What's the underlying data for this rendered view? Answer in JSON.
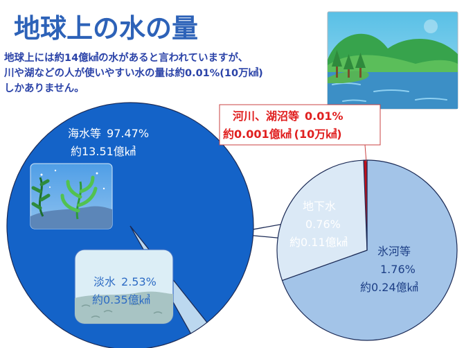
{
  "page": {
    "title": "地球上の水の量",
    "description": [
      "地球上には約14億㎦の水があると言われていますが、",
      "川や湖などの人が使いやすい水の量は約0.01%(10万㎦)",
      "しかありません。"
    ]
  },
  "colors": {
    "title": "#2d62b8",
    "sea": "#1463c8",
    "fresh_total": "#bcd8ef",
    "glacier": "#a3c4e8",
    "groundwater": "#dbe9f6",
    "rivers_lakes": "#c0101a",
    "label_red": "#e02020"
  },
  "illustrations": {
    "top_right": "lake-landscape-icon",
    "sea_inset": "seaweed-icon",
    "fresh_inset": "water-surface-icon"
  },
  "chart_data": [
    {
      "type": "pie",
      "labels": [
        "海水等",
        "淡水"
      ],
      "values": [
        97.47,
        2.53
      ],
      "units": "%",
      "segments": [
        {
          "label": "海水等",
          "pct_text": "97.47%",
          "volume_text": "約13.51億㎦"
        },
        {
          "label": "淡水",
          "pct_text": "2.53%",
          "volume_text": "約0.35億㎦"
        }
      ]
    },
    {
      "type": "pie",
      "labels": [
        "氷河等",
        "地下水",
        "河川、湖沼等"
      ],
      "values": [
        1.76,
        0.76,
        0.01
      ],
      "units": "%",
      "segments": [
        {
          "label": "氷河等",
          "pct_text": "1.76%",
          "volume_text": "約0.24億㎦"
        },
        {
          "label": "地下水",
          "pct_text": "0.76%",
          "volume_text": "約0.11億㎦"
        },
        {
          "label": "河川、湖沼等",
          "pct_text": "0.01%",
          "volume_text": "約0.001億㎦",
          "extra_text": "(10万㎦)"
        }
      ]
    }
  ]
}
